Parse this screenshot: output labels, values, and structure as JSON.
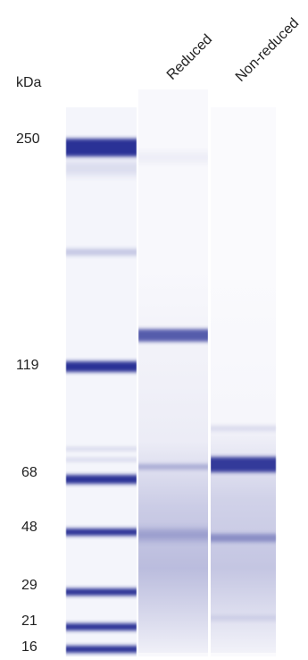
{
  "axis_unit": "kDa",
  "lanes": [
    {
      "id": "ladder",
      "label": ""
    },
    {
      "id": "reduced",
      "label": "Reduced"
    },
    {
      "id": "non-reduced",
      "label": "Non-reduced"
    }
  ],
  "markers": [
    {
      "label": "250",
      "kda": 250
    },
    {
      "label": "119",
      "kda": 119
    },
    {
      "label": "68",
      "kda": 68
    },
    {
      "label": "48",
      "kda": 48
    },
    {
      "label": "29",
      "kda": 29
    },
    {
      "label": "21",
      "kda": 21
    },
    {
      "label": "16",
      "kda": 16
    }
  ],
  "colors": {
    "band": "#2b3196",
    "text": "#222222",
    "background": "#ffffff"
  }
}
